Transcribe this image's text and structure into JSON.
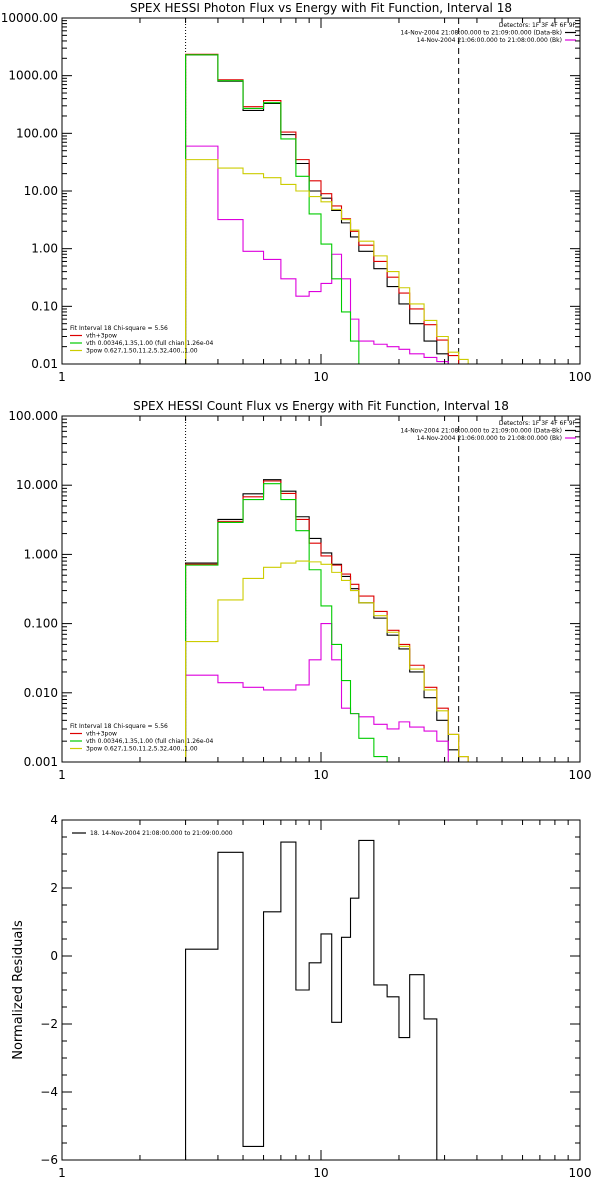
{
  "chart_data": [
    {
      "type": "line",
      "title": "SPEX HESSI Photon Flux vs Energy with Fit Function, Interval 18",
      "xscale": "log",
      "yscale": "log",
      "xlim": [
        1,
        100
      ],
      "ylim": [
        0.01,
        10000
      ],
      "x_ticks": [
        1,
        10,
        100
      ],
      "x_tick_labels": [
        "1",
        "10",
        "100"
      ],
      "y_ticks": [
        0.01,
        0.1,
        1,
        10,
        100,
        1000,
        10000
      ],
      "y_tick_labels": [
        "0.01",
        "0.10",
        "1.00",
        "10.00",
        "100.00",
        "1000.00",
        "10000.00"
      ],
      "info_lines": [
        {
          "text": "Detectors: 1F 3F 4F 6F 9F",
          "color": null
        },
        {
          "text": "14-Nov-2004 21:08:00.000 to 21:09:00.000 (Data-Bk)",
          "color": "#000000"
        },
        {
          "text": "14-Nov-2004 21:06:00.000 to 21:08:00.000 (Bk)",
          "color": "#dd00dd"
        }
      ],
      "legend_title": "Fit Interval 18   Chi-square = 5.56",
      "legend": [
        {
          "text": "vth+3pow",
          "color": "#dd0000"
        },
        {
          "text": "vth 0.00346,1.35,1.00  (full chian 1.26e-04",
          "color": "#00cc00"
        },
        {
          "text": "3pow 0.627,1.50,11.2,5.32,400.,1.00",
          "color": "#cccc00"
        }
      ],
      "fit_range": [
        3,
        34
      ],
      "bin_edges": [
        3,
        4,
        5,
        6,
        7,
        8,
        9,
        10,
        11,
        12,
        13,
        14,
        16,
        18,
        20,
        22,
        25,
        28,
        31,
        34,
        37,
        40
      ],
      "series": [
        {
          "name": "Data-Bk",
          "color": "#000000",
          "values": [
            2300,
            800,
            250,
            330,
            95,
            30,
            10,
            7.5,
            4.6,
            2.8,
            1.6,
            0.9,
            0.45,
            0.22,
            0.11,
            0.05,
            0.025,
            0.015,
            null,
            null,
            null
          ]
        },
        {
          "name": "Bk",
          "color": "#dd00dd",
          "values": [
            60,
            3.2,
            0.9,
            0.65,
            0.3,
            0.15,
            0.18,
            0.25,
            0.8,
            0.3,
            0.06,
            0.025,
            0.022,
            0.02,
            0.018,
            0.015,
            0.013,
            0.011,
            0.01,
            null,
            null
          ]
        },
        {
          "name": "vth+3pow",
          "color": "#dd0000",
          "values": [
            2350,
            850,
            290,
            370,
            105,
            35,
            15,
            9,
            5.5,
            3.3,
            2,
            1.15,
            0.6,
            0.32,
            0.17,
            0.09,
            0.048,
            0.026,
            0.014,
            null,
            null
          ]
        },
        {
          "name": "vth",
          "color": "#00cc00",
          "values": [
            2300,
            820,
            270,
            340,
            80,
            18,
            4,
            1.2,
            0.3,
            0.08,
            0.025,
            0.01,
            null,
            null,
            null,
            null,
            null,
            null,
            null,
            null,
            null
          ]
        },
        {
          "name": "3pow",
          "color": "#cccc00",
          "values": [
            35,
            25,
            20,
            17,
            13,
            10,
            8,
            6.5,
            4.8,
            3.2,
            2.1,
            1.35,
            0.75,
            0.4,
            0.21,
            0.11,
            0.057,
            0.03,
            0.016,
            0.012,
            0.01
          ]
        }
      ]
    },
    {
      "type": "line",
      "title": "SPEX HESSI Count Flux vs Energy with Fit Function, Interval 18",
      "xscale": "log",
      "yscale": "log",
      "xlim": [
        1,
        100
      ],
      "ylim": [
        0.001,
        100
      ],
      "x_ticks": [
        1,
        10,
        100
      ],
      "x_tick_labels": [
        "1",
        "10",
        "100"
      ],
      "y_ticks": [
        0.001,
        0.01,
        0.1,
        1,
        10,
        100
      ],
      "y_tick_labels": [
        "0.001",
        "0.010",
        "0.100",
        "1.000",
        "10.000",
        "100.000"
      ],
      "info_lines": [
        {
          "text": "Detectors: 1F 3F 4F 6F 9F",
          "color": null
        },
        {
          "text": "14-Nov-2004 21:08:00.000 to 21:09:00.000 (Data-Bk)",
          "color": "#000000"
        },
        {
          "text": "14-Nov-2004 21:06:00.000 to 21:08:00.000 (Bk)",
          "color": "#dd00dd"
        }
      ],
      "legend_title": "Fit Interval 18   Chi-square = 5.56",
      "legend": [
        {
          "text": "vth+3pow",
          "color": "#dd0000"
        },
        {
          "text": "vth 0.00346,1.35,1.00  (full chian 1.26e-04",
          "color": "#00cc00"
        },
        {
          "text": "3pow 0.627,1.50,11.2,5.32,400.,1.00",
          "color": "#cccc00"
        }
      ],
      "fit_range": [
        3,
        34
      ],
      "bin_edges": [
        3,
        4,
        5,
        6,
        7,
        8,
        9,
        10,
        11,
        12,
        13,
        14,
        16,
        18,
        20,
        22,
        25,
        28,
        31,
        34,
        37,
        40
      ],
      "series": [
        {
          "name": "Data-Bk",
          "color": "#000000",
          "values": [
            0.75,
            3.2,
            7.5,
            12,
            8.2,
            3.5,
            1.7,
            1.05,
            0.72,
            0.48,
            0.32,
            0.2,
            0.12,
            0.068,
            0.043,
            0.02,
            0.0085,
            0.004,
            0.0015,
            null,
            null
          ]
        },
        {
          "name": "Bk",
          "color": "#dd00dd",
          "values": [
            0.018,
            0.014,
            0.012,
            0.011,
            0.011,
            0.013,
            0.03,
            0.1,
            0.03,
            0.006,
            0.005,
            0.0045,
            0.0035,
            0.003,
            0.0038,
            0.0032,
            0.0028,
            0.002,
            0.001,
            null,
            null
          ]
        },
        {
          "name": "vth+3pow",
          "color": "#dd0000",
          "values": [
            0.72,
            3.0,
            6.8,
            11.5,
            7.6,
            3.2,
            1.45,
            0.95,
            0.7,
            0.52,
            0.37,
            0.25,
            0.15,
            0.08,
            0.05,
            0.025,
            0.012,
            0.006,
            0.0025,
            0.0012,
            null
          ]
        },
        {
          "name": "vth",
          "color": "#00cc00",
          "values": [
            0.7,
            2.9,
            6.2,
            10.5,
            6.2,
            2.2,
            0.6,
            0.18,
            0.05,
            0.015,
            0.005,
            0.0022,
            0.0012,
            null,
            null,
            null,
            null,
            null,
            null,
            null,
            null
          ]
        },
        {
          "name": "3pow",
          "color": "#cccc00",
          "values": [
            0.055,
            0.22,
            0.45,
            0.65,
            0.75,
            0.8,
            0.78,
            0.72,
            0.55,
            0.42,
            0.3,
            0.2,
            0.13,
            0.075,
            0.047,
            0.022,
            0.011,
            0.0055,
            0.0025,
            0.0012,
            null
          ]
        }
      ]
    },
    {
      "type": "line",
      "title": "",
      "ylabel": "Normalized Residuals",
      "xscale": "log",
      "yscale": "linear",
      "xlim": [
        1,
        100
      ],
      "ylim": [
        -6,
        4
      ],
      "x_ticks": [
        1,
        10,
        100
      ],
      "x_tick_labels": [
        "1",
        "10",
        "100"
      ],
      "y_ticks": [
        -6,
        -4,
        -2,
        0,
        2,
        4
      ],
      "y_tick_labels": [
        "−6",
        "−4",
        "−2",
        "0",
        "2",
        "4"
      ],
      "legend": [
        {
          "text": "18. 14-Nov-2004 21:08:00.000 to 21:09:00.000",
          "color": "#000000"
        }
      ],
      "bin_edges": [
        3,
        4,
        5,
        6,
        7,
        8,
        9,
        10,
        11,
        12,
        13,
        14,
        16,
        18,
        20,
        22,
        25,
        28,
        31,
        34
      ],
      "series": [
        {
          "name": "18. 14-Nov-2004 21:08:00.000 to 21:09:00.000",
          "color": "#000000",
          "values": [
            0.2,
            3.05,
            -5.6,
            1.3,
            3.35,
            -1.0,
            -0.2,
            0.65,
            -1.95,
            0.55,
            1.7,
            3.4,
            -0.85,
            -1.2,
            -2.4,
            -0.55,
            -1.85,
            -6.0,
            -6.0
          ]
        }
      ]
    }
  ]
}
